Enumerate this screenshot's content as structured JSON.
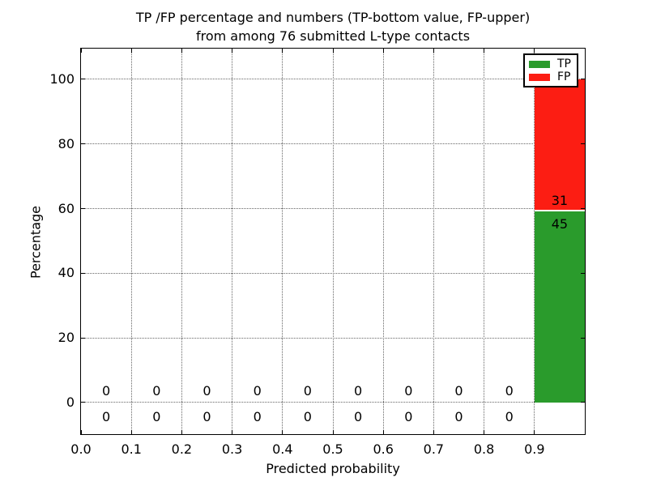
{
  "chart_data": {
    "type": "bar",
    "stacked": true,
    "title_line1": "TP /FP percentage and numbers (TP-bottom value, FP-upper)",
    "title_line2": "from among 76 submitted L-type contacts",
    "xlabel": "Predicted probability",
    "ylabel": "Percentage",
    "total_contacts": 76,
    "xlim": [
      0,
      1
    ],
    "ylim": [
      -9.8,
      109.5
    ],
    "grid": "dotted",
    "legend_position": "upper right",
    "xticks": {
      "values": [
        0,
        0.1,
        0.2,
        0.3,
        0.4,
        0.5,
        0.6,
        0.7,
        0.8,
        0.9
      ],
      "labels": [
        "0.0",
        "0.1",
        "0.2",
        "0.3",
        "0.4",
        "0.5",
        "0.6",
        "0.7",
        "0.8",
        "0.9"
      ]
    },
    "yticks": {
      "values": [
        0,
        20,
        40,
        60,
        80,
        100
      ],
      "labels": [
        "0",
        "20",
        "40",
        "60",
        "80",
        "100"
      ]
    },
    "bin_edges": [
      0,
      0.1,
      0.2,
      0.3,
      0.4,
      0.5,
      0.6,
      0.7,
      0.8,
      0.9,
      1.0
    ],
    "series": [
      {
        "name": "TP",
        "color": "#2a9b2c",
        "counts": [
          0,
          0,
          0,
          0,
          0,
          0,
          0,
          0,
          0,
          45
        ],
        "percent_in_last_bin": 59.2
      },
      {
        "name": "FP",
        "color": "#fc1d13",
        "counts": [
          0,
          0,
          0,
          0,
          0,
          0,
          0,
          0,
          0,
          31
        ],
        "percent_in_last_bin": 40.8
      }
    ],
    "bar_labels": [
      {
        "series": "FP",
        "text": "31",
        "x": 0.95,
        "y": 62.3
      },
      {
        "series": "TP",
        "text": "45",
        "x": 0.95,
        "y": 55.2
      }
    ],
    "zero_labels": {
      "text": "0",
      "bin_centers": [
        0.05,
        0.15,
        0.25,
        0.35,
        0.45,
        0.55,
        0.65,
        0.75,
        0.85
      ],
      "fp_row_y": 3.6,
      "tp_row_y": -4.6
    },
    "colors": {
      "background": "#ffffff",
      "grid": "#666666",
      "text": "#000000"
    }
  }
}
